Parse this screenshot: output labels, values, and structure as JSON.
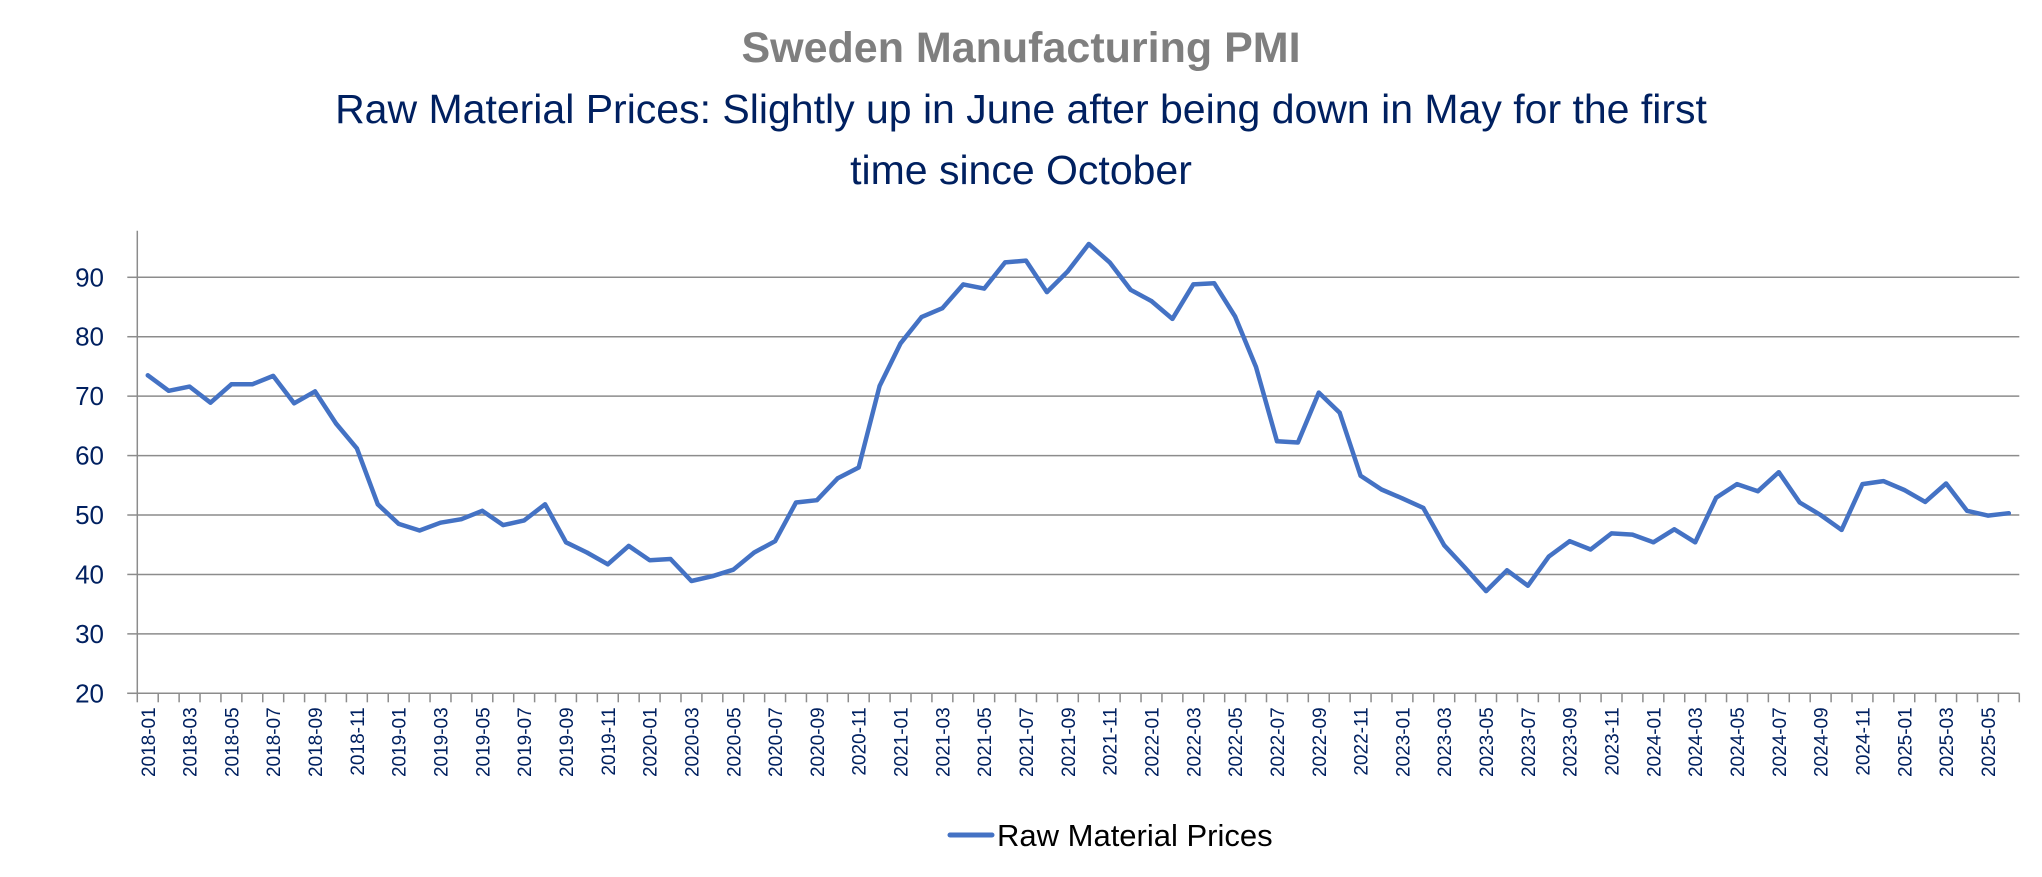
{
  "chart_data": {
    "type": "line",
    "title": "Sweden Manufacturing PMI",
    "subtitle_lines": [
      "Raw Material Prices: Slightly up in June after being down in May for the first",
      "time since October"
    ],
    "xlabel": "",
    "ylabel": "",
    "ylim": [
      20,
      97
    ],
    "yticks": [
      20,
      30,
      40,
      50,
      60,
      70,
      80,
      90
    ],
    "grid": true,
    "legend_position": "bottom",
    "x": [
      "2018-01",
      "2018-02",
      "2018-03",
      "2018-04",
      "2018-05",
      "2018-06",
      "2018-07",
      "2018-08",
      "2018-09",
      "2018-10",
      "2018-11",
      "2018-12",
      "2019-01",
      "2019-02",
      "2019-03",
      "2019-04",
      "2019-05",
      "2019-06",
      "2019-07",
      "2019-08",
      "2019-09",
      "2019-10",
      "2019-11",
      "2019-12",
      "2020-01",
      "2020-02",
      "2020-03",
      "2020-04",
      "2020-05",
      "2020-06",
      "2020-07",
      "2020-08",
      "2020-09",
      "2020-10",
      "2020-11",
      "2020-12",
      "2021-01",
      "2021-02",
      "2021-03",
      "2021-04",
      "2021-05",
      "2021-06",
      "2021-07",
      "2021-08",
      "2021-09",
      "2021-10",
      "2021-11",
      "2021-12",
      "2022-01",
      "2022-02",
      "2022-03",
      "2022-04",
      "2022-05",
      "2022-06",
      "2022-07",
      "2022-08",
      "2022-09",
      "2022-10",
      "2022-11",
      "2022-12",
      "2023-01",
      "2023-02",
      "2023-03",
      "2023-04",
      "2023-05",
      "2023-06",
      "2023-07",
      "2023-08",
      "2023-09",
      "2023-10",
      "2023-11",
      "2023-12",
      "2024-01",
      "2024-02",
      "2024-03",
      "2024-04",
      "2024-05",
      "2024-06",
      "2024-07",
      "2024-08",
      "2024-09",
      "2024-10",
      "2024-11",
      "2024-12",
      "2025-01",
      "2025-02",
      "2025-03",
      "2025-04",
      "2025-05",
      "2025-06"
    ],
    "x_tick_labels": [
      "2018-01",
      "2018-03",
      "2018-05",
      "2018-07",
      "2018-09",
      "2018-11",
      "2019-01",
      "2019-03",
      "2019-05",
      "2019-07",
      "2019-09",
      "2019-11",
      "2020-01",
      "2020-03",
      "2020-05",
      "2020-07",
      "2020-09",
      "2020-11",
      "2021-01",
      "2021-03",
      "2021-05",
      "2021-07",
      "2021-09",
      "2021-11",
      "2022-01",
      "2022-03",
      "2022-05",
      "2022-07",
      "2022-09",
      "2022-11",
      "2023-01",
      "2023-03",
      "2023-05",
      "2023-07",
      "2023-09",
      "2023-11",
      "2024-01",
      "2024-03",
      "2024-05",
      "2024-07",
      "2024-09",
      "2024-11",
      "2025-01",
      "2025-03",
      "2025-05"
    ],
    "series": [
      {
        "name": "Raw Material Prices",
        "color": "#4472c4",
        "values": [
          73.5,
          70.9,
          71.6,
          68.9,
          72.0,
          72.0,
          73.4,
          68.8,
          70.8,
          65.4,
          61.2,
          51.8,
          48.5,
          47.4,
          48.7,
          49.3,
          50.7,
          48.3,
          49.1,
          51.8,
          45.4,
          43.7,
          41.7,
          44.8,
          42.4,
          42.6,
          38.9,
          39.7,
          40.8,
          43.7,
          45.6,
          52.1,
          52.5,
          56.2,
          58.0,
          71.7,
          78.9,
          83.3,
          84.8,
          88.8,
          88.1,
          92.5,
          92.8,
          87.5,
          91.0,
          95.6,
          92.5,
          87.9,
          86.0,
          83.0,
          88.8,
          89.0,
          83.4,
          74.9,
          62.4,
          62.2,
          70.6,
          67.2,
          56.6,
          54.3,
          52.8,
          51.2,
          44.9,
          41.1,
          37.2,
          40.7,
          38.1,
          43.0,
          45.6,
          44.2,
          46.9,
          46.7,
          45.4,
          47.6,
          45.4,
          52.9,
          55.2,
          54.0,
          57.2,
          52.1,
          50.0,
          47.5,
          55.2,
          55.7,
          54.2,
          52.2,
          55.3,
          50.7,
          49.9,
          50.3
        ]
      }
    ],
    "colors": {
      "title": "#7f7f7f",
      "subtitle": "#002060",
      "axis_text": "#002060",
      "gridline": "#8c8c8c",
      "legend_text": "#000000"
    }
  }
}
